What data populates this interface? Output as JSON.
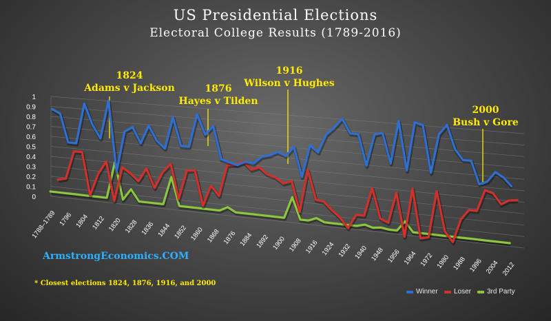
{
  "title": "US Presidential Elections",
  "subtitle": "Electoral College Results (1789-2016)",
  "annotations": [
    {
      "id": "1824",
      "year": "1824",
      "label": "Adams v Jackson"
    },
    {
      "id": "1876",
      "year": "1876",
      "label": "Hayes v Tilden"
    },
    {
      "id": "1916",
      "year": "1916",
      "label": "Wilson v Hughes"
    },
    {
      "id": "2000",
      "year": "2000",
      "label": "Bush v Gore"
    }
  ],
  "source": "ArmstrongEconomics.COM",
  "footnote": "* Closest elections 1824, 1876, 1916, and 2000",
  "colors": {
    "winner": "#2e6fd1",
    "loser": "#d0312d",
    "third": "#8dc63f",
    "annotation": "#ffea00",
    "source": "#2fb0ff"
  },
  "chart_data": {
    "type": "line",
    "x_tick_labels": [
      "1788–1789",
      "1796",
      "1804",
      "1812",
      "1820",
      "1828",
      "1836",
      "1844",
      "1852",
      "1860",
      "1868",
      "1876",
      "1884",
      "1892",
      "1900",
      "1908",
      "1916",
      "1924",
      "1932",
      "1940",
      "1948",
      "1956",
      "1964",
      "1972",
      "1980",
      "1988",
      "1996",
      "2004",
      "2012"
    ],
    "y_ticks": [
      "0",
      "0.1",
      "0.2",
      "0.3",
      "0.4",
      "0.5",
      "0.6",
      "0.7",
      "0.8",
      "0.9",
      "1"
    ],
    "ylim": [
      0,
      1
    ],
    "grid": true,
    "legend_position": "bottom-right",
    "series": [
      {
        "name": "Winner",
        "values": [
          0.84,
          0.8,
          0.52,
          0.52,
          0.92,
          0.72,
          0.59,
          0.97,
          0.28,
          0.68,
          0.73,
          0.58,
          0.76,
          0.62,
          0.55,
          0.86,
          0.59,
          0.59,
          0.91,
          0.72,
          0.81,
          0.5,
          0.48,
          0.46,
          0.5,
          0.49,
          0.56,
          0.58,
          0.62,
          0.59,
          0.68,
          0.41,
          0.71,
          0.65,
          0.82,
          0.89,
          0.98,
          0.85,
          0.85,
          0.57,
          0.86,
          0.88,
          0.61,
          1.0,
          0.56,
          1.0,
          0.98,
          0.56,
          0.91,
          1.0,
          0.79,
          0.7,
          0.7,
          0.5,
          0.53,
          0.62,
          0.58,
          0.51
        ]
      },
      {
        "name": "Loser",
        "values": [
          0.18,
          0.2,
          0.48,
          0.48,
          0.06,
          0.28,
          0.41,
          0.03,
          0.37,
          0.32,
          0.25,
          0.38,
          0.2,
          0.36,
          0.45,
          0.12,
          0.4,
          0.41,
          0.08,
          0.28,
          0.19,
          0.49,
          0.5,
          0.54,
          0.47,
          0.5,
          0.44,
          0.42,
          0.37,
          0.4,
          0.12,
          0.52,
          0.25,
          0.24,
          0.17,
          0.11,
          0.02,
          0.15,
          0.15,
          0.41,
          0.14,
          0.11,
          0.39,
          0.0,
          0.44,
          0.0,
          0.02,
          0.44,
          0.09,
          0.0,
          0.21,
          0.3,
          0.3,
          0.49,
          0.47,
          0.38,
          0.42,
          0.43
        ]
      },
      {
        "name": "3rd Party",
        "values": [
          0,
          0,
          0,
          0,
          0,
          0,
          0,
          0,
          0.36,
          0.0,
          0.11,
          0.0,
          0.0,
          0.0,
          0.0,
          0.27,
          0.0,
          0.0,
          0.0,
          0.0,
          0.0,
          0.0,
          0.04,
          0.0,
          0.0,
          0.0,
          0.0,
          0.0,
          0.0,
          0.0,
          0.2,
          0.0,
          0.0,
          0.03,
          0.0,
          0.0,
          0.0,
          0.0,
          0.0,
          0.02,
          0.0,
          0.01,
          0.0,
          0.0,
          0.09,
          0.0,
          0.0,
          0.0,
          0.0,
          0.0,
          0.0,
          0.0,
          0.0,
          0.0,
          0.0,
          0.0,
          0.0,
          0.0
        ]
      }
    ]
  }
}
